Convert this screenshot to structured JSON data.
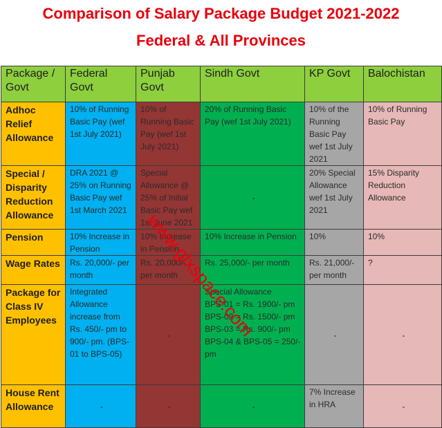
{
  "title_line1": "Comparison of Salary Package Budget 2021-2022",
  "title_line2": "Federal & All Provinces",
  "headers": {
    "package": "Package / Govt",
    "federal": "Federal Govt",
    "punjab": "Punjab Govt",
    "sindh": "Sindh Govt",
    "kp": "KP Govt",
    "balochistan": "Balochistan"
  },
  "rows": {
    "adhoc": {
      "label": "Adhoc Relief Allowance",
      "federal": "10% of Running Basic Pay (wef 1st July 2021)",
      "punjab": "10% of Running Basic Pay (wef 1st July 2021)",
      "sindh": "20% of Running Basic Pay (wef 1st July 2021)",
      "kp": "10% of the Running Basic Pay wef 1st July 2021",
      "balochistan": "10% of Running Basic Pay"
    },
    "special": {
      "label": "Special / Disparity Reduction Allowance",
      "federal": "DRA 2021 @ 25% on Running Basic Pay wef 1st March 2021",
      "punjab": "Special Allowance @ 25% of Initial Basic Pay wef 1st June 2021",
      "sindh": "-",
      "kp": "20% Special Allowance wef 1st July 2021",
      "balochistan": "15% Disparity Reduction Allowance"
    },
    "pension": {
      "label": "Pension",
      "federal": "10% Increase in Pension",
      "punjab": "10% Increase in Pension",
      "sindh": "10% Increase in Pension",
      "kp": "10%",
      "balochistan": "10%"
    },
    "wage": {
      "label": "Wage Rates",
      "federal": "Rs. 20,000/- per month",
      "punjab": "Rs. 20,000/- per month",
      "sindh": "Rs. 25,000/- per month",
      "kp": "Rs. 21,000/- per month",
      "balochistan": "?"
    },
    "class4": {
      "label": "Package for Class IV Employees",
      "federal": "Integrated Allowance increase from Rs. 450/- pm to 900/- pm. (BPS-01 to BPS-05)",
      "punjab": "-",
      "sindh": [
        "Special Allowance",
        "BPS-01 = Rs. 1900/- pm",
        "BPS-02 = Rs. 1500/- pm",
        "BPS-03 = Rs. 900/- pm",
        "BPS-04 & BPS-05 = 250/- pm"
      ],
      "kp": "-",
      "balochistan": "-"
    },
    "hra": {
      "label": "House Rent Allowance",
      "federal": "-",
      "punjab": "-",
      "sindh": "-",
      "kp": "7% Increase in HRA",
      "balochistan": "-"
    }
  },
  "watermark": "www.glxspace.com"
}
